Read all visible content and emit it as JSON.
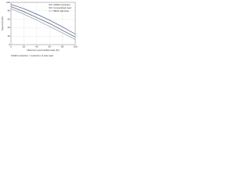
{
  "chart_data": {
    "type": "line",
    "x_label": "Maximum permissible load (%)",
    "y_label": "Speed (km/h)",
    "caption": "100kN reduction = reduction of axle load",
    "x": [
      0,
      20,
      40,
      60,
      80,
      100
    ],
    "series": [
      {
        "name": "100kN reduction",
        "color": "#3a5a8c",
        "values": [
          95,
          85,
          72,
          58,
          42,
          25
        ]
      },
      {
        "name": "Unrestricted load",
        "color": "#555555",
        "values": [
          90,
          78,
          64,
          50,
          34,
          18
        ]
      },
      {
        "name": "50kN reduction",
        "color": "#8aa0c0",
        "values": [
          85,
          72,
          58,
          43,
          28,
          12
        ]
      }
    ],
    "xlim": [
      0,
      100
    ],
    "ylim": [
      0,
      100
    ],
    "xticks": [
      0,
      20,
      40,
      60,
      80,
      100
    ],
    "yticks": [
      0,
      20,
      40,
      60,
      80,
      100
    ],
    "grid": true,
    "legend": "top-right"
  }
}
